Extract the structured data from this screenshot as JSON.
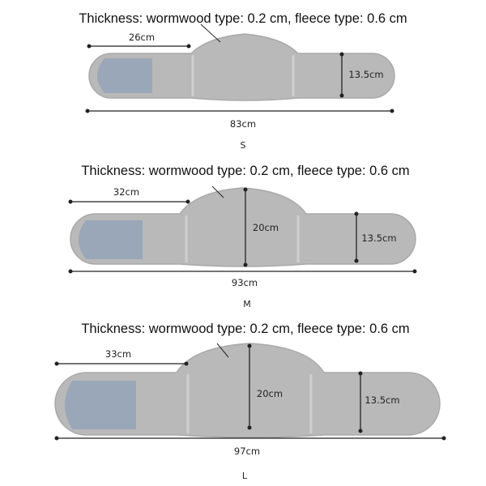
{
  "panels": [
    {
      "size": "S",
      "thickness_note": "Thickness: wormwood type: 0.2 cm, fleece type: 0.6 cm",
      "strap_length": "26cm",
      "total_length": "83cm",
      "end_width": "13.5cm"
    },
    {
      "size": "M",
      "thickness_note": "Thickness: wormwood type: 0.2 cm, fleece type: 0.6 cm",
      "strap_length": "32cm",
      "total_length": "93cm",
      "end_width": "13.5cm",
      "center_width": "20cm"
    },
    {
      "size": "L",
      "thickness_note": "Thickness: wormwood type: 0.2 cm, fleece type: 0.6 cm",
      "strap_length": "33cm",
      "total_length": "97cm",
      "end_width": "13.5cm",
      "center_width": "20cm"
    }
  ],
  "colors": {
    "belt": "#b9b9b9",
    "belt_edge": "#a9a9a9",
    "velcro": "#9aa7b8",
    "line": "#222222"
  }
}
